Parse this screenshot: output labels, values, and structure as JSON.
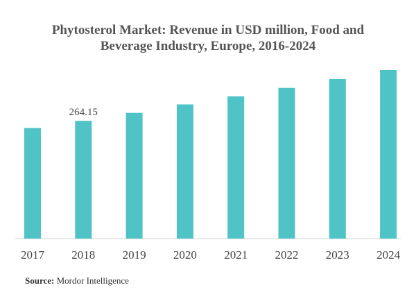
{
  "title_lines": [
    "Phytosterol Market: Revenue in USD million, Food and",
    "Beverage Industry, Europe, 2016-2024"
  ],
  "source": {
    "label": "Source:",
    "value": "Mordor Intelligence"
  },
  "colors": {
    "bar": "#4fc3c6",
    "axis": "#d3d3d3",
    "text": "#444444"
  },
  "chart_data": {
    "type": "bar",
    "title": "Phytosterol Market: Revenue in USD million, Food and Beverage Industry, Europe, 2016-2024",
    "categories": [
      "2017",
      "2018",
      "2019",
      "2020",
      "2021",
      "2022",
      "2023",
      "2024"
    ],
    "values": [
      248,
      264.15,
      282,
      301,
      319,
      338,
      358,
      378
    ],
    "data_labels": [
      {
        "index": 1,
        "text": "264.15"
      }
    ],
    "xlabel": "",
    "ylabel": "",
    "ylim": [
      0,
      378
    ],
    "grid": false,
    "legend": "none"
  }
}
